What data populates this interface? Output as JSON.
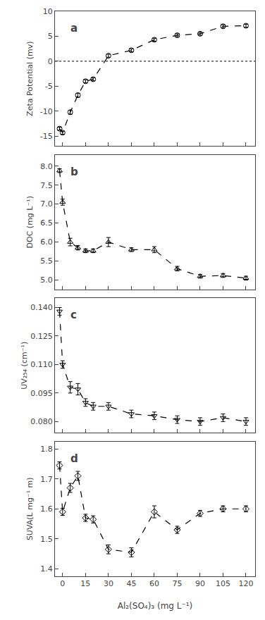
{
  "chart_data": [
    {
      "type": "line",
      "title": "a",
      "ylabel": "Zeta Potential (mv)",
      "x": [
        -2,
        0,
        5,
        10,
        15,
        20,
        30,
        45,
        60,
        75,
        90,
        105,
        120
      ],
      "series": [
        {
          "values": [
            -13.5,
            -14.3,
            -10.2,
            -6.8,
            -4.0,
            -3.6,
            1.1,
            2.2,
            4.3,
            5.2,
            5.5,
            7.0,
            7.1
          ],
          "error": [
            0.3,
            0.3,
            0.4,
            0.4,
            0.3,
            0.3,
            0.3,
            0.3,
            0.3,
            0.3,
            0.3,
            0.3,
            0.3
          ],
          "color": "#000000",
          "marker": "circle",
          "line_style": "dash"
        }
      ],
      "hline": {
        "y": 0,
        "line_style": "dot",
        "color": "#000000"
      },
      "xlim": [
        -5,
        126
      ],
      "ylim": [
        -17,
        10
      ],
      "yticks": [
        -15,
        -10,
        -5,
        0,
        5,
        10
      ],
      "grid": false,
      "tick_labels": "y"
    },
    {
      "type": "line",
      "title": "b",
      "ylabel": "DOC (mg L⁻¹)",
      "x": [
        -2,
        0,
        5,
        10,
        15,
        20,
        30,
        45,
        60,
        75,
        90,
        105,
        120
      ],
      "series": [
        {
          "values": [
            7.88,
            7.05,
            6.0,
            5.85,
            5.77,
            5.77,
            6.0,
            5.8,
            5.8,
            5.3,
            5.1,
            5.12,
            5.05
          ],
          "error": [
            0.05,
            0.08,
            0.1,
            0.06,
            0.05,
            0.05,
            0.12,
            0.05,
            0.08,
            0.06,
            0.05,
            0.05,
            0.05
          ],
          "color": "#000000",
          "marker": "triangle-up",
          "line_style": "dash"
        }
      ],
      "xlim": [
        -5,
        126
      ],
      "ylim": [
        4.75,
        8.3
      ],
      "yticks": [
        {
          "value": 5.0,
          "label": "5.0"
        },
        5.5,
        {
          "value": 6.0,
          "label": "6.0"
        },
        6.5,
        {
          "value": 7.0,
          "label": "7.0"
        },
        7.5,
        {
          "value": 8.0,
          "label": "8.0"
        }
      ],
      "grid": false,
      "tick_labels": "y"
    },
    {
      "type": "line",
      "title": "c",
      "ylabel": "UV₂₅₄ (cm⁻¹)",
      "x": [
        -2,
        0,
        5,
        10,
        15,
        20,
        30,
        45,
        60,
        75,
        90,
        105,
        120
      ],
      "series": [
        {
          "values": [
            0.138,
            0.11,
            0.098,
            0.097,
            0.09,
            0.088,
            0.088,
            0.084,
            0.083,
            0.081,
            0.08,
            0.082,
            0.08
          ],
          "error": [
            0.002,
            0.002,
            0.003,
            0.003,
            0.002,
            0.002,
            0.002,
            0.002,
            0.002,
            0.002,
            0.002,
            0.002,
            0.002
          ],
          "color": "#000000",
          "marker": "triangle-down",
          "line_style": "dash"
        }
      ],
      "xlim": [
        -5,
        126
      ],
      "ylim": [
        0.074,
        0.145
      ],
      "yticks": [
        {
          "value": 0.08,
          "label": "0.080"
        },
        0.095,
        {
          "value": 0.11,
          "label": "0.110"
        },
        0.125,
        {
          "value": 0.14,
          "label": "0.140"
        }
      ],
      "grid": false,
      "tick_labels": "y"
    },
    {
      "type": "line",
      "title": "d",
      "ylabel": "SUVA(L mg⁻¹ m)",
      "xlabel": "Al₂(SO₄)₃ (mg L⁻¹)",
      "x": [
        -2,
        0,
        5,
        10,
        15,
        20,
        30,
        45,
        60,
        75,
        90,
        105,
        120
      ],
      "series": [
        {
          "values": [
            1.745,
            1.59,
            1.67,
            1.71,
            1.57,
            1.565,
            1.465,
            1.455,
            1.59,
            1.53,
            1.585,
            1.6,
            1.6
          ],
          "error": [
            0.012,
            0.012,
            0.015,
            0.015,
            0.012,
            0.012,
            0.015,
            0.015,
            0.02,
            0.012,
            0.01,
            0.01,
            0.01
          ],
          "color": "#000000",
          "marker": "diamond",
          "line_style": "dash"
        }
      ],
      "xlim": [
        -5,
        126
      ],
      "ylim": [
        1.375,
        1.825
      ],
      "xticks": [
        0,
        15,
        30,
        45,
        60,
        75,
        90,
        105,
        120
      ],
      "yticks": [
        1.4,
        1.5,
        1.6,
        1.7,
        1.8
      ],
      "grid": false
    }
  ]
}
